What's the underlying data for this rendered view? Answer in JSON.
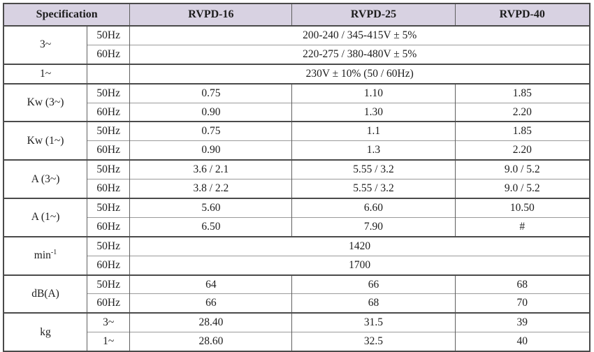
{
  "colors": {
    "header_bg": "#d8d2e2",
    "border_dark": "#4a4a4a",
    "border_mid": "#5f5f5f",
    "border_light": "#9a9a9a"
  },
  "header": {
    "specification": "Specification",
    "rvpd16": "RVPD-16",
    "rvpd25": "RVPD-25",
    "rvpd40": "RVPD-40"
  },
  "groups": {
    "three_phase": {
      "label": "3~",
      "rows": [
        {
          "sub": "50Hz",
          "value": "200-240 / 345-415V ± 5%"
        },
        {
          "sub": "60Hz",
          "value": "220-275 / 380-480V ± 5%"
        }
      ]
    },
    "single_phase": {
      "label": "1~",
      "sub": "",
      "value": "230V ± 10% (50 / 60Hz)"
    },
    "kw_3ph": {
      "label": "Kw (3~)",
      "rows": [
        {
          "sub": "50Hz",
          "v16": "0.75",
          "v25": "1.10",
          "v40": "1.85"
        },
        {
          "sub": "60Hz",
          "v16": "0.90",
          "v25": "1.30",
          "v40": "2.20"
        }
      ]
    },
    "kw_1ph": {
      "label": "Kw (1~)",
      "rows": [
        {
          "sub": "50Hz",
          "v16": "0.75",
          "v25": "1.1",
          "v40": "1.85"
        },
        {
          "sub": "60Hz",
          "v16": "0.90",
          "v25": "1.3",
          "v40": "2.20"
        }
      ]
    },
    "amp_3ph": {
      "label": "A (3~)",
      "rows": [
        {
          "sub": "50Hz",
          "v16": "3.6 / 2.1",
          "v25": "5.55 / 3.2",
          "v40": "9.0 / 5.2"
        },
        {
          "sub": "60Hz",
          "v16": "3.8 / 2.2",
          "v25": "5.55 / 3.2",
          "v40": "9.0 / 5.2"
        }
      ]
    },
    "amp_1ph": {
      "label": "A (1~)",
      "rows": [
        {
          "sub": "50Hz",
          "v16": "5.60",
          "v25": "6.60",
          "v40": "10.50"
        },
        {
          "sub": "60Hz",
          "v16": "6.50",
          "v25": "7.90",
          "v40": "#"
        }
      ]
    },
    "speed": {
      "label_base": "min",
      "label_sup": "-1",
      "rows": [
        {
          "sub": "50Hz",
          "value": "1420"
        },
        {
          "sub": "60Hz",
          "value": "1700"
        }
      ]
    },
    "noise": {
      "label": "dB(A)",
      "rows": [
        {
          "sub": "50Hz",
          "v16": "64",
          "v25": "66",
          "v40": "68"
        },
        {
          "sub": "60Hz",
          "v16": "66",
          "v25": "68",
          "v40": "70"
        }
      ]
    },
    "weight": {
      "label": "kg",
      "rows": [
        {
          "sub": "3~",
          "v16": "28.40",
          "v25": "31.5",
          "v40": "39"
        },
        {
          "sub": "1~",
          "v16": "28.60",
          "v25": "32.5",
          "v40": "40"
        }
      ]
    }
  }
}
